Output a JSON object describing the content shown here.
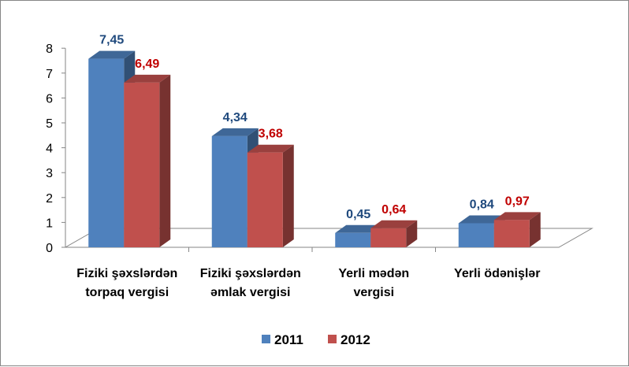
{
  "chart_data": {
    "type": "bar",
    "categories": [
      [
        "Fiziki şəxslərdən",
        "torpaq vergisi"
      ],
      [
        "Fiziki şəxslərdən",
        "əmlak vergisi"
      ],
      [
        "Yerli mədən",
        "vergisi"
      ],
      [
        "Yerli ödənişlər"
      ]
    ],
    "series": [
      {
        "name": "2011",
        "values": [
          7.45,
          4.34,
          0.45,
          0.84
        ],
        "labels": [
          "7,45",
          "4,34",
          "0,45",
          "0,84"
        ],
        "color": "#4F81BD",
        "label_color": "#1F497D"
      },
      {
        "name": "2012",
        "values": [
          6.49,
          3.68,
          0.64,
          0.97
        ],
        "labels": [
          "6,49",
          "3,68",
          "0,64",
          "0,97"
        ],
        "color": "#C0504D",
        "label_color": "#C00000"
      }
    ],
    "y_ticks": [
      "0",
      "1",
      "2",
      "3",
      "4",
      "5",
      "6",
      "7",
      "8"
    ],
    "ylim": [
      0,
      8
    ],
    "grid": false,
    "legend_position": "bottom"
  }
}
